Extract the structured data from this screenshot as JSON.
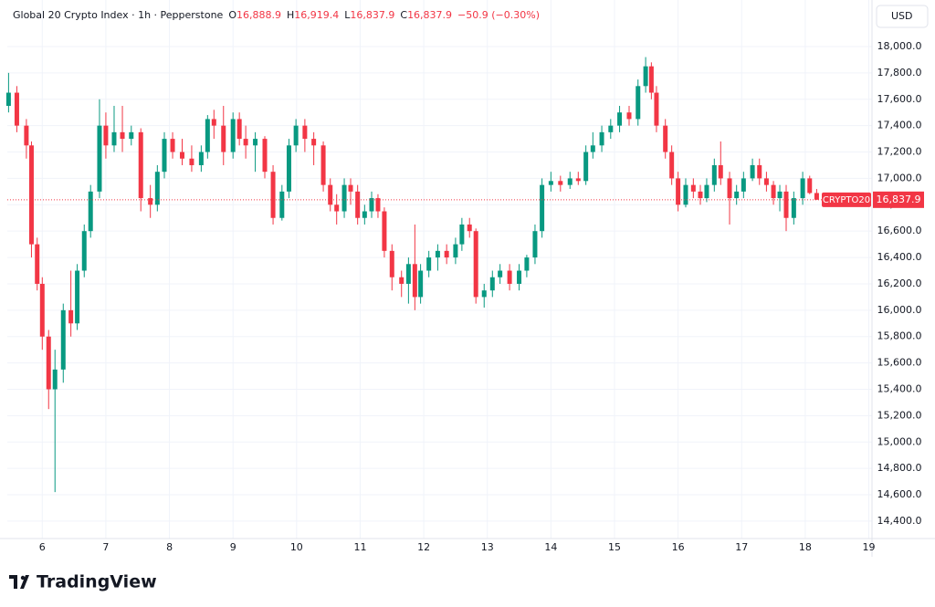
{
  "chart_data": {
    "type": "candlestick",
    "title": "Global 20 Crypto Index · 1h · Pepperstone",
    "ohlc_legend": [
      {
        "label": "O",
        "value": "16,888.9"
      },
      {
        "label": "H",
        "value": "16,919.4"
      },
      {
        "label": "L",
        "value": "16,837.9"
      },
      {
        "label": "C",
        "value": "16,837.9"
      }
    ],
    "change": "−50.9 (−0.30%)",
    "currency": "USD",
    "branding": "TradingView",
    "up_color": "#089981",
    "down_color": "#f23645",
    "grid": true,
    "xlim": [
      5.45,
      19.05
    ],
    "xticks": [
      6,
      7,
      8,
      9,
      10,
      11,
      12,
      13,
      14,
      15,
      16,
      17,
      18,
      19
    ],
    "ylim": [
      14268,
      18353
    ],
    "yticks": [
      {
        "value": 14400,
        "label": "14,400.0"
      },
      {
        "value": 14600,
        "label": "14,600.0"
      },
      {
        "value": 14800,
        "label": "14,800.0"
      },
      {
        "value": 15000,
        "label": "15,000.0"
      },
      {
        "value": 15200,
        "label": "15,200.0"
      },
      {
        "value": 15400,
        "label": "15,400.0"
      },
      {
        "value": 15600,
        "label": "15,600.0"
      },
      {
        "value": 15800,
        "label": "15,800.0"
      },
      {
        "value": 16000,
        "label": "16,000.0"
      },
      {
        "value": 16200,
        "label": "16,200.0"
      },
      {
        "value": 16400,
        "label": "16,400.0"
      },
      {
        "value": 16600,
        "label": "16,600.0"
      },
      {
        "value": 16800,
        "label": "16,800.0"
      },
      {
        "value": 17000,
        "label": "17,000.0"
      },
      {
        "value": 17200,
        "label": "17,200.0"
      },
      {
        "value": 17400,
        "label": "17,400.0"
      },
      {
        "value": 17600,
        "label": "17,600.0"
      },
      {
        "value": 17800,
        "label": "17,800.0"
      },
      {
        "value": 18000,
        "label": "18,000.0"
      }
    ],
    "last_price": {
      "symbol": "CRYPTO20",
      "value": 16837.9,
      "label": "16,837.9"
    },
    "candles": [
      [
        5.47,
        17550,
        17800,
        17500,
        17650
      ],
      [
        5.6,
        17650,
        17700,
        17350,
        17400
      ],
      [
        5.75,
        17400,
        17450,
        17150,
        17250
      ],
      [
        5.83,
        17250,
        17280,
        16400,
        16500
      ],
      [
        5.92,
        16500,
        16550,
        16150,
        16200
      ],
      [
        6.0,
        16200,
        16250,
        15700,
        15800
      ],
      [
        6.1,
        15800,
        15850,
        15250,
        15400
      ],
      [
        6.2,
        15400,
        15700,
        14620,
        15550
      ],
      [
        6.33,
        15550,
        16050,
        15450,
        16000
      ],
      [
        6.45,
        16000,
        16300,
        15800,
        15900
      ],
      [
        6.55,
        15900,
        16350,
        15850,
        16300
      ],
      [
        6.66,
        16300,
        16650,
        16250,
        16600
      ],
      [
        6.76,
        16600,
        16950,
        16550,
        16900
      ],
      [
        6.9,
        16900,
        17600,
        16850,
        17400
      ],
      [
        7.0,
        17400,
        17500,
        17150,
        17250
      ],
      [
        7.13,
        17250,
        17550,
        17200,
        17350
      ],
      [
        7.26,
        17350,
        17550,
        17200,
        17300
      ],
      [
        7.4,
        17300,
        17400,
        17250,
        17350
      ],
      [
        7.55,
        17350,
        17380,
        16750,
        16850
      ],
      [
        7.7,
        16850,
        16950,
        16700,
        16800
      ],
      [
        7.81,
        16800,
        17100,
        16750,
        17050
      ],
      [
        7.92,
        17050,
        17350,
        17000,
        17300
      ],
      [
        8.05,
        17300,
        17350,
        17150,
        17200
      ],
      [
        8.2,
        17200,
        17300,
        17100,
        17150
      ],
      [
        8.35,
        17150,
        17250,
        17050,
        17100
      ],
      [
        8.5,
        17100,
        17250,
        17050,
        17200
      ],
      [
        8.6,
        17200,
        17480,
        17150,
        17450
      ],
      [
        8.7,
        17450,
        17520,
        17300,
        17400
      ],
      [
        8.85,
        17400,
        17550,
        17100,
        17200
      ],
      [
        9.0,
        17200,
        17500,
        17150,
        17450
      ],
      [
        9.1,
        17450,
        17500,
        17250,
        17300
      ],
      [
        9.2,
        17300,
        17400,
        17150,
        17250
      ],
      [
        9.35,
        17250,
        17350,
        17050,
        17300
      ],
      [
        9.5,
        17300,
        17320,
        17000,
        17050
      ],
      [
        9.63,
        17050,
        17100,
        16650,
        16700
      ],
      [
        9.77,
        16700,
        16950,
        16680,
        16900
      ],
      [
        9.88,
        16900,
        17300,
        16850,
        17250
      ],
      [
        9.99,
        17250,
        17450,
        17200,
        17400
      ],
      [
        10.13,
        17400,
        17450,
        17200,
        17300
      ],
      [
        10.27,
        17300,
        17350,
        17100,
        17250
      ],
      [
        10.42,
        17250,
        17280,
        16900,
        16950
      ],
      [
        10.53,
        16950,
        17000,
        16750,
        16800
      ],
      [
        10.63,
        16800,
        16880,
        16650,
        16750
      ],
      [
        10.75,
        16750,
        17000,
        16700,
        16950
      ],
      [
        10.85,
        16950,
        17000,
        16800,
        16900
      ],
      [
        10.96,
        16900,
        16950,
        16650,
        16700
      ],
      [
        11.07,
        16700,
        16800,
        16650,
        16750
      ],
      [
        11.18,
        16750,
        16900,
        16700,
        16850
      ],
      [
        11.28,
        16850,
        16880,
        16700,
        16750
      ],
      [
        11.38,
        16750,
        16780,
        16400,
        16450
      ],
      [
        11.5,
        16450,
        16500,
        16150,
        16250
      ],
      [
        11.65,
        16250,
        16300,
        16100,
        16200
      ],
      [
        11.76,
        16200,
        16400,
        16050,
        16350
      ],
      [
        11.86,
        16350,
        16650,
        16000,
        16100
      ],
      [
        11.95,
        16100,
        16350,
        16050,
        16300
      ],
      [
        12.08,
        16300,
        16450,
        16250,
        16400
      ],
      [
        12.22,
        16400,
        16500,
        16300,
        16450
      ],
      [
        12.36,
        16450,
        16500,
        16350,
        16400
      ],
      [
        12.5,
        16400,
        16550,
        16350,
        16500
      ],
      [
        12.6,
        16500,
        16700,
        16450,
        16650
      ],
      [
        12.72,
        16650,
        16700,
        16550,
        16600
      ],
      [
        12.82,
        16600,
        16620,
        16050,
        16100
      ],
      [
        12.95,
        16100,
        16200,
        16020,
        16150
      ],
      [
        13.08,
        16150,
        16300,
        16100,
        16250
      ],
      [
        13.2,
        16250,
        16350,
        16200,
        16300
      ],
      [
        13.35,
        16300,
        16350,
        16150,
        16200
      ],
      [
        13.5,
        16200,
        16350,
        16150,
        16300
      ],
      [
        13.62,
        16300,
        16420,
        16250,
        16400
      ],
      [
        13.75,
        16400,
        16650,
        16350,
        16600
      ],
      [
        13.86,
        16600,
        17000,
        16550,
        16950
      ],
      [
        14.0,
        16950,
        17050,
        16900,
        16980
      ],
      [
        14.15,
        16980,
        17020,
        16900,
        16950
      ],
      [
        14.3,
        16950,
        17050,
        16920,
        17000
      ],
      [
        14.43,
        17000,
        17050,
        16950,
        16980
      ],
      [
        14.55,
        16980,
        17250,
        16950,
        17200
      ],
      [
        14.66,
        17200,
        17350,
        17150,
        17250
      ],
      [
        14.8,
        17250,
        17400,
        17200,
        17350
      ],
      [
        14.94,
        17350,
        17450,
        17300,
        17400
      ],
      [
        15.08,
        17400,
        17550,
        17350,
        17500
      ],
      [
        15.23,
        17500,
        17550,
        17400,
        17450
      ],
      [
        15.37,
        17450,
        17750,
        17400,
        17700
      ],
      [
        15.49,
        17700,
        17920,
        17650,
        17850
      ],
      [
        15.58,
        17850,
        17880,
        17600,
        17650
      ],
      [
        15.66,
        17650,
        17700,
        17350,
        17400
      ],
      [
        15.8,
        17400,
        17450,
        17150,
        17200
      ],
      [
        15.9,
        17200,
        17250,
        16950,
        17000
      ],
      [
        16.0,
        17000,
        17050,
        16750,
        16800
      ],
      [
        16.12,
        16800,
        17000,
        16780,
        16950
      ],
      [
        16.24,
        16950,
        17000,
        16850,
        16900
      ],
      [
        16.35,
        16900,
        16950,
        16800,
        16850
      ],
      [
        16.45,
        16850,
        17000,
        16820,
        16950
      ],
      [
        16.57,
        16950,
        17150,
        16900,
        17100
      ],
      [
        16.67,
        17100,
        17280,
        16950,
        17000
      ],
      [
        16.81,
        17000,
        17050,
        16650,
        16850
      ],
      [
        16.92,
        16850,
        16950,
        16800,
        16900
      ],
      [
        17.03,
        16900,
        17050,
        16850,
        17000
      ],
      [
        17.17,
        17000,
        17150,
        16980,
        17100
      ],
      [
        17.28,
        17100,
        17150,
        16950,
        17000
      ],
      [
        17.39,
        17000,
        17050,
        16900,
        16950
      ],
      [
        17.5,
        16950,
        16980,
        16800,
        16850
      ],
      [
        17.6,
        16850,
        16950,
        16750,
        16900
      ],
      [
        17.7,
        16900,
        16950,
        16600,
        16700
      ],
      [
        17.82,
        16700,
        16900,
        16650,
        16850
      ],
      [
        17.96,
        16850,
        17050,
        16800,
        17000
      ],
      [
        18.07,
        17000,
        17020,
        16880,
        16888.9
      ],
      [
        18.18,
        16888.9,
        16919.4,
        16837.9,
        16837.9
      ]
    ]
  }
}
